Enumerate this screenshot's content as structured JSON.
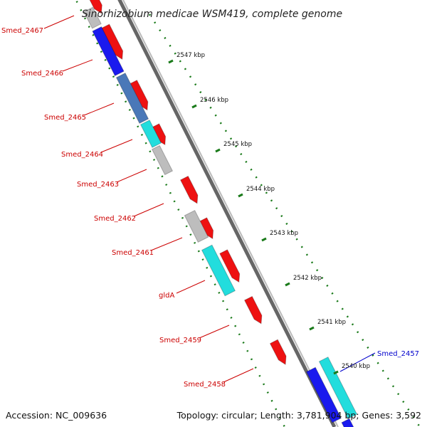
{
  "title": "Sinorhizobium medicae WSM419, complete genome",
  "footer": {
    "accession": "Accession: NC_009636",
    "topology": "Topology: circular; Length: 3,781,904 bp; Genes: 3,592"
  },
  "colors": {
    "forward": "#ee1111",
    "reverse_blue": "#1a1aee",
    "steel": "#4a78b8",
    "cyan": "#22dddd",
    "grey": "#bdbdbd",
    "scale_green": "#1a7a1a",
    "label_red": "#cc0000",
    "label_blue": "#0000cc",
    "backbone": "#888888"
  },
  "scale_labels": [
    "2547 kbp",
    "2546 kbp",
    "2545 kbp",
    "2544 kbp",
    "2543 kbp",
    "2542 kbp",
    "2541 kbp",
    "2540 kbp"
  ],
  "gene_labels": [
    {
      "text": "Smed_2467",
      "color": "red"
    },
    {
      "text": "Smed_2466",
      "color": "red"
    },
    {
      "text": "Smed_2465",
      "color": "red"
    },
    {
      "text": "Smed_2464",
      "color": "red"
    },
    {
      "text": "Smed_2463",
      "color": "red"
    },
    {
      "text": "Smed_2462",
      "color": "red"
    },
    {
      "text": "Smed_2461",
      "color": "red"
    },
    {
      "text": "gldA",
      "color": "red"
    },
    {
      "text": "Smed_2459",
      "color": "red"
    },
    {
      "text": "Smed_2458",
      "color": "red"
    },
    {
      "text": "Smed_2457",
      "color": "blue"
    }
  ]
}
